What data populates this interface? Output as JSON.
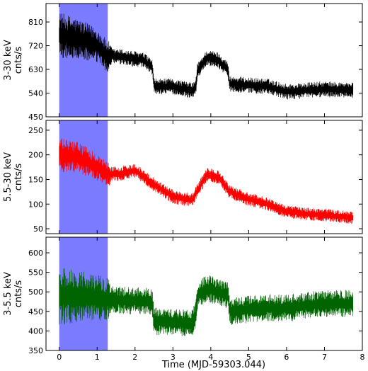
{
  "chart_data": {
    "type": "line",
    "xlabel": "Time (MJD-59303.044)",
    "xlim": [
      -0.35,
      8.0
    ],
    "x_ticks": [
      0,
      1,
      2,
      3,
      4,
      5,
      6,
      7,
      8
    ],
    "x_tick_labels": [
      "0",
      "1",
      "2",
      "3",
      "4",
      "5",
      "6",
      "7",
      "8"
    ],
    "shaded_region": {
      "x_start": 0.0,
      "x_end": 1.28,
      "color": "#7b7bff"
    },
    "grid": false,
    "panels": [
      {
        "name": "3-30 keV",
        "ylabel": [
          "3-30 keV",
          "cnts/s"
        ],
        "color": "#000000",
        "ylim": [
          450,
          880
        ],
        "y_ticks": [
          450,
          540,
          630,
          720,
          810
        ],
        "y_tick_labels": [
          "450",
          "540",
          "630",
          "720",
          "810"
        ],
        "profile": [
          [
            0.0,
            760
          ],
          [
            0.5,
            745
          ],
          [
            1.0,
            720
          ],
          [
            1.25,
            680
          ],
          [
            1.6,
            678
          ],
          [
            2.2,
            665
          ],
          [
            2.45,
            640
          ],
          [
            2.5,
            565
          ],
          [
            3.0,
            565
          ],
          [
            3.5,
            550
          ],
          [
            3.6,
            560
          ],
          [
            3.65,
            625
          ],
          [
            3.9,
            675
          ],
          [
            4.2,
            665
          ],
          [
            4.45,
            630
          ],
          [
            4.5,
            575
          ],
          [
            5.5,
            565
          ],
          [
            6.0,
            545
          ],
          [
            6.5,
            550
          ],
          [
            7.0,
            555
          ],
          [
            7.75,
            550
          ]
        ],
        "flicker": [
          [
            0.0,
            175
          ],
          [
            1.3,
            120
          ],
          [
            1.4,
            60
          ],
          [
            7.8,
            60
          ]
        ]
      },
      {
        "name": "5.5-30 keV",
        "ylabel": [
          "5.5-30 keV",
          "cnts/s"
        ],
        "color": "#ff0000",
        "ylim": [
          40,
          270
        ],
        "y_ticks": [
          50,
          100,
          150,
          200,
          250
        ],
        "y_tick_labels": [
          "50",
          "100",
          "150",
          "200",
          "250"
        ],
        "profile": [
          [
            0.0,
            200
          ],
          [
            0.5,
            195
          ],
          [
            1.0,
            175
          ],
          [
            1.3,
            160
          ],
          [
            1.6,
            162
          ],
          [
            2.0,
            168
          ],
          [
            2.5,
            140
          ],
          [
            3.0,
            115
          ],
          [
            3.5,
            108
          ],
          [
            3.9,
            160
          ],
          [
            4.2,
            155
          ],
          [
            4.5,
            125
          ],
          [
            5.0,
            110
          ],
          [
            5.5,
            100
          ],
          [
            6.0,
            85
          ],
          [
            6.5,
            80
          ],
          [
            7.0,
            78
          ],
          [
            7.75,
            72
          ]
        ],
        "flicker": [
          [
            0.0,
            70
          ],
          [
            1.3,
            50
          ],
          [
            1.4,
            30
          ],
          [
            7.8,
            25
          ]
        ]
      },
      {
        "name": "3-5.5 keV",
        "ylabel": [
          "3-5.5 keV",
          "cnts/s"
        ],
        "color": "#006400",
        "ylim": [
          350,
          640
        ],
        "y_ticks": [
          350,
          400,
          450,
          500,
          550,
          600
        ],
        "y_tick_labels": [
          "350",
          "400",
          "450",
          "500",
          "550",
          "600"
        ],
        "profile": [
          [
            0.0,
            490
          ],
          [
            1.0,
            485
          ],
          [
            1.3,
            480
          ],
          [
            2.45,
            475
          ],
          [
            2.5,
            425
          ],
          [
            3.5,
            420
          ],
          [
            3.6,
            440
          ],
          [
            3.65,
            490
          ],
          [
            3.9,
            510
          ],
          [
            4.45,
            490
          ],
          [
            4.5,
            450
          ],
          [
            5.0,
            455
          ],
          [
            5.5,
            460
          ],
          [
            6.0,
            458
          ],
          [
            6.5,
            465
          ],
          [
            7.0,
            470
          ],
          [
            7.75,
            470
          ]
        ],
        "flicker": [
          [
            0.0,
            150
          ],
          [
            1.3,
            110
          ],
          [
            1.4,
            70
          ],
          [
            7.8,
            70
          ]
        ]
      }
    ]
  }
}
